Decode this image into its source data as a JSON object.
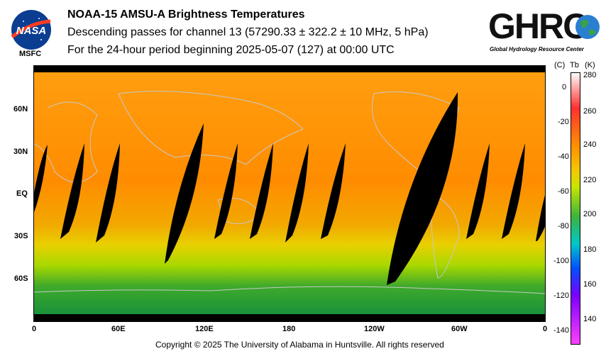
{
  "header": {
    "title": "NOAA-15 AMSU-A Brightness Temperatures",
    "subtitle": "Descending passes for channel 13 (57290.33 ± 322.2 ± 10 MHz, 5 hPa)",
    "period": "For the 24-hour period beginning 2025-05-07 (127) at 00:00 UTC"
  },
  "logos": {
    "nasa_text": "NASA",
    "msfc_text": "MSFC",
    "ghrc_text": "GHRC",
    "ghrc_caption": "Global Hydrology Resource Center"
  },
  "map": {
    "lat_labels": [
      "60N",
      "30N",
      "EQ",
      "30S",
      "60S"
    ],
    "lon_labels": [
      "0",
      "60E",
      "120E",
      "180",
      "120W",
      "60W",
      "0"
    ]
  },
  "colorbar": {
    "header_c": "(C)",
    "header_tb": "Tb",
    "header_k": "(K)",
    "celsius_ticks": [
      "0",
      "-20",
      "-40",
      "-60",
      "-80",
      "-100",
      "-120",
      "-140"
    ],
    "kelvin_ticks": [
      "280",
      "260",
      "240",
      "220",
      "200",
      "180",
      "160",
      "140"
    ],
    "colors": [
      "#ffffff",
      "#ff3030",
      "#ff9000",
      "#f5c800",
      "#c8e600",
      "#3cb43c",
      "#00c8c8",
      "#0050ff",
      "#7a00ff",
      "#ff40ff"
    ]
  },
  "footer": {
    "copyright": "Copyright © 2025 The University of Alabama in Huntsville.  All rights reserved"
  }
}
